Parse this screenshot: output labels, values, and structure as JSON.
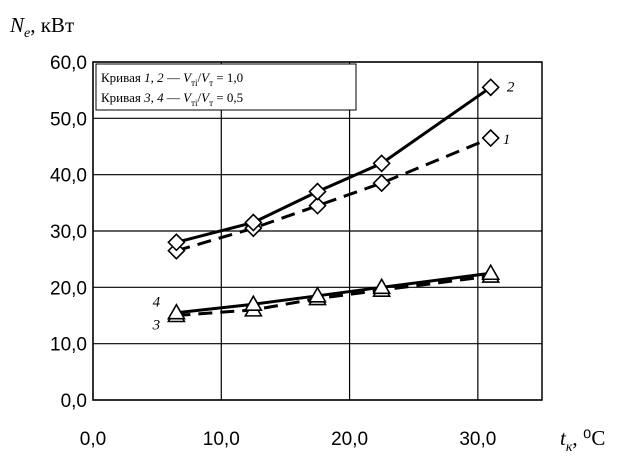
{
  "chart_data": {
    "type": "line",
    "ylabel_symbol": "N",
    "ylabel_subscript": "e",
    "ylabel_unit": ", кВт",
    "xlabel_symbol": "t",
    "xlabel_subscript": "к",
    "xlabel_unit": ", ⁰C",
    "xlim": [
      0,
      35
    ],
    "ylim": [
      0,
      60
    ],
    "xticks": [
      "0,0",
      "10,0",
      "20,0",
      "30,0"
    ],
    "yticks": [
      "0,0",
      "10,0",
      "20,0",
      "30,0",
      "40,0",
      "50,0",
      "60,0"
    ],
    "grid": true,
    "legend": {
      "line1": {
        "prefix": "Кривая ",
        "curves": "1, 2",
        "dash": " — ",
        "v1": "V",
        "v1_sub": "тi",
        "slash": "/",
        "v2": "V",
        "v2_sub": "т",
        "value": " = 1,0"
      },
      "line2": {
        "prefix": "Кривая ",
        "curves": "3, 4",
        "dash": " — ",
        "v1": "V",
        "v1_sub": "тi",
        "slash": "/",
        "v2": "V",
        "v2_sub": "т",
        "value": " = 0,5"
      }
    },
    "series": [
      {
        "name": "1",
        "style": "dashed",
        "marker": "diamond",
        "x": [
          6.5,
          12.5,
          17.5,
          22.5,
          31
        ],
        "y": [
          26.5,
          30.5,
          34.5,
          38.5,
          46.5
        ]
      },
      {
        "name": "2",
        "style": "solid",
        "marker": "diamond",
        "x": [
          6.5,
          12.5,
          17.5,
          22.5,
          31
        ],
        "y": [
          28,
          31.5,
          37,
          42,
          55.5
        ]
      },
      {
        "name": "3",
        "style": "dashed",
        "marker": "triangle",
        "x": [
          6.5,
          12.5,
          17.5,
          22.5,
          31
        ],
        "y": [
          15,
          16,
          18,
          19.5,
          22
        ]
      },
      {
        "name": "4",
        "style": "solid",
        "marker": "triangle",
        "x": [
          6.5,
          12.5,
          17.5,
          22.5,
          31
        ],
        "y": [
          15.5,
          17,
          18.5,
          20,
          22.5
        ]
      }
    ]
  }
}
